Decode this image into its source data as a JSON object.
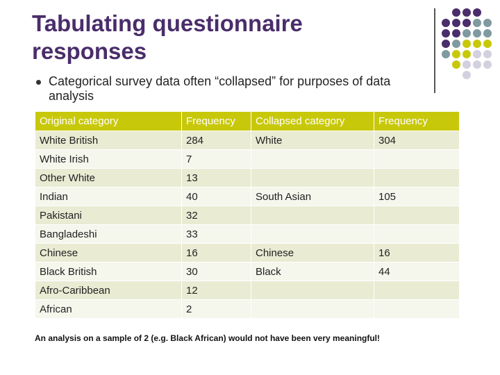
{
  "slide": {
    "title": "Tabulating questionnaire responses",
    "bullet": "Categorical survey data often “collapsed” for purposes of data analysis",
    "footnote": "An analysis on a sample of 2 (e.g. Black African) would not have been very meaningful!"
  },
  "colors": {
    "title": "#4a2d6b",
    "header_bg": "#c8c80a",
    "row_dark": "#e9ebd3",
    "row_light": "#f5f6ec",
    "dot_purple": "#4a2d6b",
    "dot_teal": "#7f9aa0",
    "dot_olive": "#c8c80a",
    "dot_lavender": "#d3d1df"
  },
  "table": {
    "headers": [
      "Original category",
      "Frequency",
      "Collapsed category",
      "Frequency"
    ],
    "rows": [
      {
        "original": "White British",
        "frequency": "284",
        "collapsed": "White",
        "collapsed_frequency": "304"
      },
      {
        "original": "White Irish",
        "frequency": "7",
        "collapsed": "",
        "collapsed_frequency": ""
      },
      {
        "original": "Other White",
        "frequency": "13",
        "collapsed": "",
        "collapsed_frequency": ""
      },
      {
        "original": "Indian",
        "frequency": "40",
        "collapsed": "South Asian",
        "collapsed_frequency": "105"
      },
      {
        "original": "Pakistani",
        "frequency": "32",
        "collapsed": "",
        "collapsed_frequency": ""
      },
      {
        "original": "Bangladeshi",
        "frequency": "33",
        "collapsed": "",
        "collapsed_frequency": ""
      },
      {
        "original": "Chinese",
        "frequency": "16",
        "collapsed": "Chinese",
        "collapsed_frequency": "16"
      },
      {
        "original": "Black British",
        "frequency": "30",
        "collapsed": "Black",
        "collapsed_frequency": "44"
      },
      {
        "original": "Afro-Caribbean",
        "frequency": "12",
        "collapsed": "",
        "collapsed_frequency": ""
      },
      {
        "original": "African",
        "frequency": "2",
        "collapsed": "",
        "collapsed_frequency": ""
      }
    ]
  }
}
